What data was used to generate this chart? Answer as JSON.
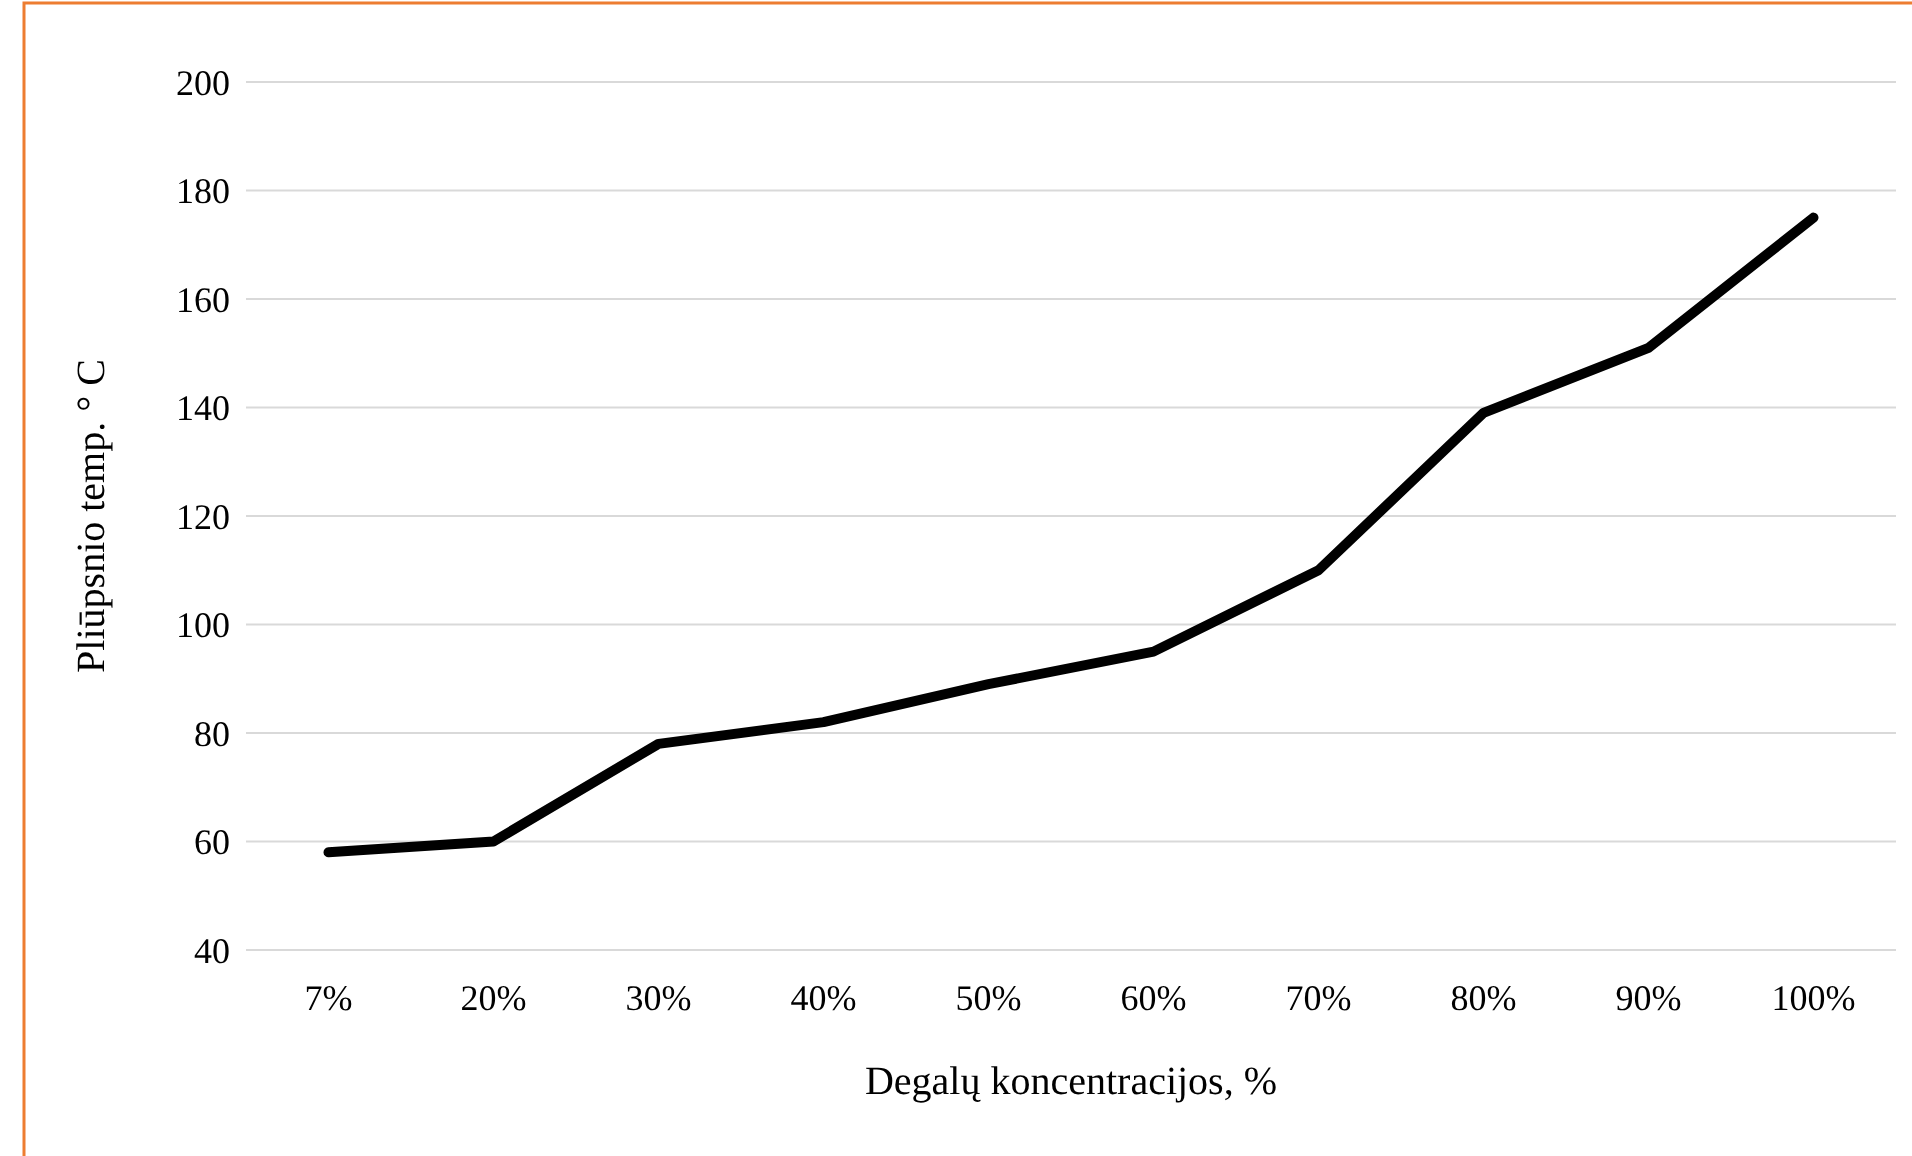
{
  "chart_data": {
    "type": "line",
    "xlabel": "Degalų koncentracijos, %",
    "ylabel": "Pliūpsnio temp. ° C",
    "categories": [
      "7%",
      "20%",
      "30%",
      "40%",
      "50%",
      "60%",
      "70%",
      "80%",
      "90%",
      "100%"
    ],
    "series": [
      {
        "color": "#000000",
        "values": [
          58,
          60,
          78,
          82,
          89,
          95,
          110,
          139,
          151,
          175
        ]
      }
    ],
    "ylim": [
      40,
      200
    ],
    "yticks": [
      40,
      60,
      80,
      100,
      120,
      140,
      160,
      180,
      200
    ],
    "grid": "y",
    "marker": "none",
    "line_style": "solid"
  }
}
